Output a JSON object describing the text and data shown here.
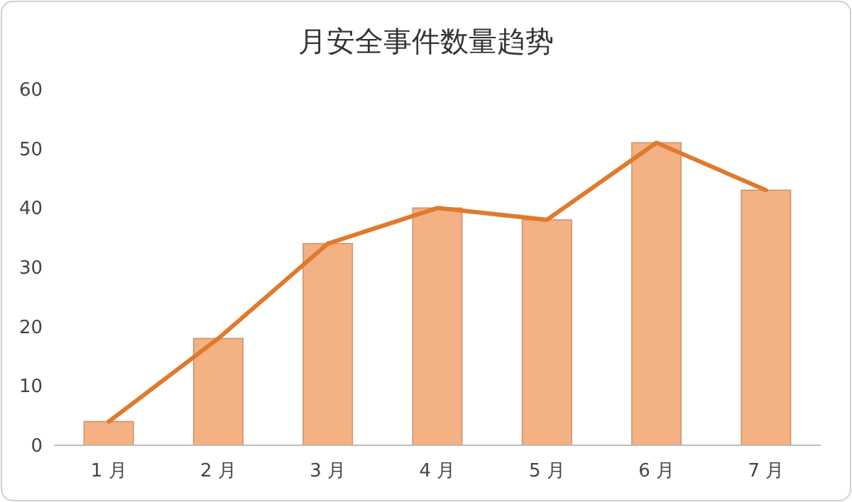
{
  "chart_data": {
    "type": "bar",
    "title": "月安全事件数量趋势",
    "categories": [
      "1 月",
      "2 月",
      "3 月",
      "4 月",
      "5 月",
      "6 月",
      "7 月"
    ],
    "series": [
      {
        "color": "#f4b183",
        "values": [
          4,
          18,
          34,
          40,
          38,
          51,
          43
        ]
      },
      {
        "type": "line",
        "color": "#e07a2c",
        "values": [
          4,
          18,
          34,
          40,
          38,
          51,
          43
        ]
      }
    ],
    "ylim": [
      0,
      60
    ],
    "yticks": [
      0,
      10,
      20,
      30,
      40,
      50,
      60
    ],
    "grid": false,
    "marker": "none",
    "line_style": "solid"
  }
}
